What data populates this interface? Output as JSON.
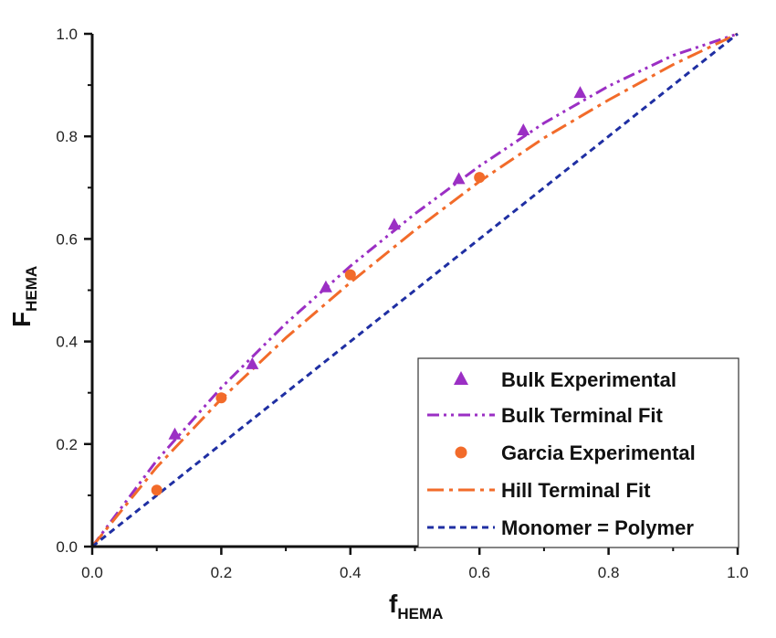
{
  "chart_data": {
    "type": "scatter",
    "xlabel": "f",
    "xlabel_sub": "HEMA",
    "ylabel": "F",
    "ylabel_sub": "HEMA",
    "xlim": [
      0.0,
      1.0
    ],
    "ylim": [
      0.0,
      1.0
    ],
    "xticks": [
      "0.0",
      "0.2",
      "0.4",
      "0.6",
      "0.8",
      "1.0"
    ],
    "yticks": [
      "0.0",
      "0.2",
      "0.4",
      "0.6",
      "0.8",
      "1.0"
    ],
    "grid": false,
    "legend_position": "bottom-right",
    "series": [
      {
        "name": "Bulk Experimental",
        "kind": "marker-triangle",
        "color": "#9b2fc4",
        "x": [
          0.128,
          0.248,
          0.362,
          0.468,
          0.568,
          0.668,
          0.756
        ],
        "y": [
          0.218,
          0.355,
          0.505,
          0.627,
          0.716,
          0.811,
          0.884
        ]
      },
      {
        "name": "Bulk Terminal Fit",
        "kind": "line-dashdotdot",
        "color": "#9b2fc4",
        "x": [
          0.0,
          0.1,
          0.2,
          0.3,
          0.4,
          0.5,
          0.6,
          0.7,
          0.8,
          0.9,
          1.0
        ],
        "y": [
          0.0,
          0.168,
          0.31,
          0.435,
          0.547,
          0.649,
          0.742,
          0.826,
          0.898,
          0.958,
          1.0
        ]
      },
      {
        "name": "Garcia Experimental",
        "kind": "marker-circle",
        "color": "#f26b2a",
        "x": [
          0.1,
          0.2,
          0.4,
          0.6
        ],
        "y": [
          0.11,
          0.29,
          0.53,
          0.72
        ]
      },
      {
        "name": "Hill Terminal Fit",
        "kind": "line-dashdot",
        "color": "#f26b2a",
        "x": [
          0.0,
          0.1,
          0.2,
          0.3,
          0.4,
          0.5,
          0.6,
          0.7,
          0.8,
          0.9,
          1.0
        ],
        "y": [
          0.0,
          0.155,
          0.288,
          0.407,
          0.515,
          0.617,
          0.712,
          0.797,
          0.871,
          0.94,
          1.0
        ]
      },
      {
        "name": "Monomer = Polymer",
        "kind": "line-dashed",
        "color": "#1f2fa3",
        "x": [
          0.0,
          1.0
        ],
        "y": [
          0.0,
          1.0
        ]
      }
    ]
  }
}
